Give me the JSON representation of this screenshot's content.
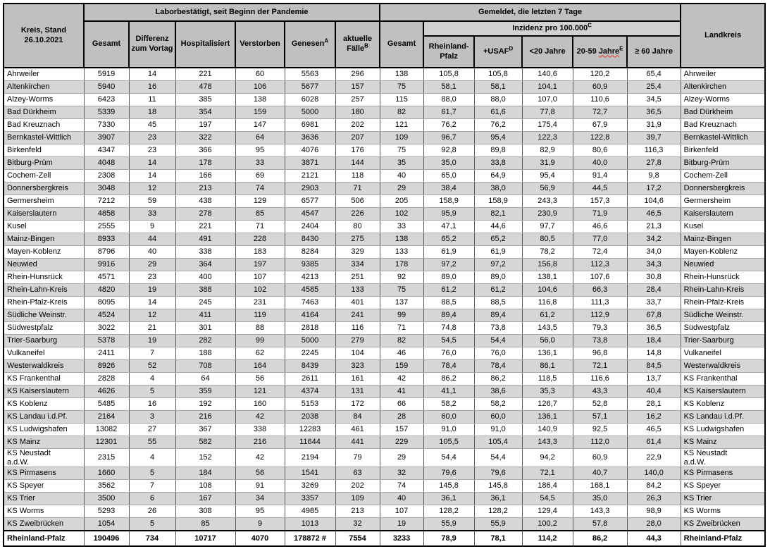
{
  "report": {
    "kreis_title": "Kreis, Stand\n26.10.2021",
    "lab_group": "Laborbestätigt, seit Beginn der Pandemie",
    "week_group": "Gemeldet, die letzten 7 Tage",
    "landkreis_header": "Landkreis",
    "lab_cols": [
      {
        "text": "Gesamt",
        "sup": ""
      },
      {
        "text": "Differenz zum Vortag",
        "sup": ""
      },
      {
        "text": "Hospitalisiert",
        "sup": ""
      },
      {
        "text": "Verstorben",
        "sup": ""
      },
      {
        "text": "Genesen",
        "sup": "A"
      },
      {
        "text": "aktuelle Fälle",
        "sup": "B"
      }
    ],
    "week_gesamt": "Gesamt",
    "incidence_group": {
      "text": "Inzidenz pro 100.000",
      "sup": "C"
    },
    "incidence_cols": [
      {
        "text": "Rheinland-Pfalz",
        "sup": ""
      },
      {
        "text": "+USAF",
        "sup": "D"
      },
      {
        "text": "<20 Jahre",
        "sup": ""
      },
      {
        "pre": "20-59 ",
        "wavy": "Jahre",
        "sup": "E"
      },
      {
        "text": "≥ 60 Jahre",
        "sup": ""
      }
    ]
  },
  "colors": {
    "header_gray": "#c0c0c0",
    "incidence_band_gray": "#d2d2d2",
    "row_band_gray": "#d6d6d6",
    "spellcheck_red": "#d93025"
  },
  "rows": [
    {
      "name": "Ahrweiler",
      "values": [
        "5919",
        "14",
        "221",
        "60",
        "5563",
        "296",
        "138",
        "105,8",
        "105,8",
        "140,6",
        "120,2",
        "65,4"
      ]
    },
    {
      "name": "Altenkirchen",
      "values": [
        "5940",
        "16",
        "478",
        "106",
        "5677",
        "157",
        "75",
        "58,1",
        "58,1",
        "104,1",
        "60,9",
        "25,4"
      ]
    },
    {
      "name": "Alzey-Worms",
      "values": [
        "6423",
        "11",
        "385",
        "138",
        "6028",
        "257",
        "115",
        "88,0",
        "88,0",
        "107,0",
        "110,6",
        "34,5"
      ]
    },
    {
      "name": "Bad Dürkheim",
      "values": [
        "5339",
        "18",
        "354",
        "159",
        "5000",
        "180",
        "82",
        "61,7",
        "61,6",
        "77,8",
        "72,7",
        "36,5"
      ]
    },
    {
      "name": "Bad Kreuznach",
      "values": [
        "7330",
        "45",
        "197",
        "147",
        "6981",
        "202",
        "121",
        "76,2",
        "76,2",
        "175,4",
        "67,9",
        "31,9"
      ]
    },
    {
      "name": "Bernkastel-Wittlich",
      "values": [
        "3907",
        "23",
        "322",
        "64",
        "3636",
        "207",
        "109",
        "96,7",
        "95,4",
        "122,3",
        "122,8",
        "39,7"
      ]
    },
    {
      "name": "Birkenfeld",
      "values": [
        "4347",
        "23",
        "366",
        "95",
        "4076",
        "176",
        "75",
        "92,8",
        "89,8",
        "82,9",
        "80,6",
        "116,3"
      ]
    },
    {
      "name": "Bitburg-Prüm",
      "values": [
        "4048",
        "14",
        "178",
        "33",
        "3871",
        "144",
        "35",
        "35,0",
        "33,8",
        "31,9",
        "40,0",
        "27,8"
      ]
    },
    {
      "name": "Cochem-Zell",
      "values": [
        "2308",
        "14",
        "166",
        "69",
        "2121",
        "118",
        "40",
        "65,0",
        "64,9",
        "95,4",
        "91,4",
        "9,8"
      ]
    },
    {
      "name": "Donnersbergkreis",
      "values": [
        "3048",
        "12",
        "213",
        "74",
        "2903",
        "71",
        "29",
        "38,4",
        "38,0",
        "56,9",
        "44,5",
        "17,2"
      ]
    },
    {
      "name": "Germersheim",
      "values": [
        "7212",
        "59",
        "438",
        "129",
        "6577",
        "506",
        "205",
        "158,9",
        "158,9",
        "243,3",
        "157,3",
        "104,6"
      ]
    },
    {
      "name": "Kaiserslautern",
      "values": [
        "4858",
        "33",
        "278",
        "85",
        "4547",
        "226",
        "102",
        "95,9",
        "82,1",
        "230,9",
        "71,9",
        "46,5"
      ]
    },
    {
      "name": "Kusel",
      "values": [
        "2555",
        "9",
        "221",
        "71",
        "2404",
        "80",
        "33",
        "47,1",
        "44,6",
        "97,7",
        "46,6",
        "21,3"
      ]
    },
    {
      "name": "Mainz-Bingen",
      "values": [
        "8933",
        "44",
        "491",
        "228",
        "8430",
        "275",
        "138",
        "65,2",
        "65,2",
        "80,5",
        "77,0",
        "34,2"
      ]
    },
    {
      "name": "Mayen-Koblenz",
      "values": [
        "8796",
        "40",
        "338",
        "183",
        "8284",
        "329",
        "133",
        "61,9",
        "61,9",
        "78,2",
        "72,4",
        "34,0"
      ]
    },
    {
      "name": "Neuwied",
      "values": [
        "9916",
        "29",
        "364",
        "197",
        "9385",
        "334",
        "178",
        "97,2",
        "97,2",
        "156,8",
        "112,3",
        "34,3"
      ]
    },
    {
      "name": "Rhein-Hunsrück",
      "values": [
        "4571",
        "23",
        "400",
        "107",
        "4213",
        "251",
        "92",
        "89,0",
        "89,0",
        "138,1",
        "107,6",
        "30,8"
      ]
    },
    {
      "name": "Rhein-Lahn-Kreis",
      "values": [
        "4820",
        "19",
        "388",
        "102",
        "4585",
        "133",
        "75",
        "61,2",
        "61,2",
        "104,6",
        "66,3",
        "28,4"
      ]
    },
    {
      "name": "Rhein-Pfalz-Kreis",
      "values": [
        "8095",
        "14",
        "245",
        "231",
        "7463",
        "401",
        "137",
        "88,5",
        "88,5",
        "116,8",
        "111,3",
        "33,7"
      ]
    },
    {
      "name": "Südliche Weinstr.",
      "values": [
        "4524",
        "12",
        "411",
        "119",
        "4164",
        "241",
        "99",
        "89,4",
        "89,4",
        "61,2",
        "112,9",
        "67,8"
      ]
    },
    {
      "name": "Südwestpfalz",
      "values": [
        "3022",
        "21",
        "301",
        "88",
        "2818",
        "116",
        "71",
        "74,8",
        "73,8",
        "143,5",
        "79,3",
        "36,5"
      ]
    },
    {
      "name": "Trier-Saarburg",
      "values": [
        "5378",
        "19",
        "282",
        "99",
        "5000",
        "279",
        "82",
        "54,5",
        "54,4",
        "56,0",
        "73,8",
        "18,4"
      ]
    },
    {
      "name": "Vulkaneifel",
      "values": [
        "2411",
        "7",
        "188",
        "62",
        "2245",
        "104",
        "46",
        "76,0",
        "76,0",
        "136,1",
        "96,8",
        "14,8"
      ]
    },
    {
      "name": "Westerwaldkreis",
      "values": [
        "8926",
        "52",
        "708",
        "164",
        "8439",
        "323",
        "159",
        "78,4",
        "78,4",
        "86,1",
        "72,1",
        "84,5"
      ]
    },
    {
      "name": "KS Frankenthal",
      "values": [
        "2828",
        "4",
        "64",
        "56",
        "2611",
        "161",
        "42",
        "86,2",
        "86,2",
        "118,5",
        "116,6",
        "13,7"
      ]
    },
    {
      "name": "KS Kaiserslautern",
      "values": [
        "4626",
        "5",
        "359",
        "121",
        "4374",
        "131",
        "41",
        "41,1",
        "38,6",
        "35,3",
        "43,3",
        "40,4"
      ]
    },
    {
      "name": "KS Koblenz",
      "values": [
        "5485",
        "16",
        "192",
        "160",
        "5153",
        "172",
        "66",
        "58,2",
        "58,2",
        "126,7",
        "52,8",
        "28,1"
      ]
    },
    {
      "name": "KS Landau i.d.Pf.",
      "values": [
        "2164",
        "3",
        "216",
        "42",
        "2038",
        "84",
        "28",
        "60,0",
        "60,0",
        "136,1",
        "57,1",
        "16,2"
      ]
    },
    {
      "name": "KS Ludwigshafen",
      "values": [
        "13082",
        "27",
        "367",
        "338",
        "12283",
        "461",
        "157",
        "91,0",
        "91,0",
        "140,9",
        "92,5",
        "46,5"
      ]
    },
    {
      "name": "KS Mainz",
      "values": [
        "12301",
        "55",
        "582",
        "216",
        "11644",
        "441",
        "229",
        "105,5",
        "105,4",
        "143,3",
        "112,0",
        "61,4"
      ]
    },
    {
      "name": "KS Neustadt\na.d.W.",
      "values": [
        "2315",
        "4",
        "152",
        "42",
        "2194",
        "79",
        "29",
        "54,4",
        "54,4",
        "94,2",
        "60,9",
        "22,9"
      ]
    },
    {
      "name": "KS Pirmasens",
      "values": [
        "1660",
        "5",
        "184",
        "56",
        "1541",
        "63",
        "32",
        "79,6",
        "79,6",
        "72,1",
        "40,7",
        "140,0"
      ]
    },
    {
      "name": "KS Speyer",
      "values": [
        "3562",
        "7",
        "108",
        "91",
        "3269",
        "202",
        "74",
        "145,8",
        "145,8",
        "186,4",
        "168,1",
        "84,2"
      ]
    },
    {
      "name": "KS Trier",
      "values": [
        "3500",
        "6",
        "167",
        "34",
        "3357",
        "109",
        "40",
        "36,1",
        "36,1",
        "54,5",
        "35,0",
        "26,3"
      ]
    },
    {
      "name": "KS Worms",
      "values": [
        "5293",
        "26",
        "308",
        "95",
        "4985",
        "213",
        "107",
        "128,2",
        "128,2",
        "129,4",
        "143,3",
        "98,9"
      ]
    },
    {
      "name": "KS Zweibrücken",
      "values": [
        "1054",
        "5",
        "85",
        "9",
        "1013",
        "32",
        "19",
        "55,9",
        "55,9",
        "100,2",
        "57,8",
        "28,0"
      ]
    }
  ],
  "total_row": {
    "name": "Rheinland-Pfalz",
    "values": [
      "190496",
      "734",
      "10717",
      "4070",
      "178872 #",
      "7554",
      "3233",
      "78,9",
      "78,1",
      "114,2",
      "86,2",
      "44,3"
    ]
  }
}
